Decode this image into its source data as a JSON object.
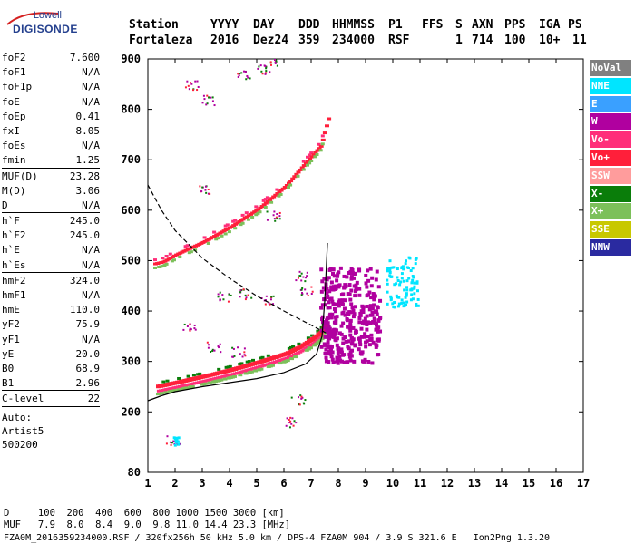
{
  "logo": {
    "top": "Lowell",
    "main": "DIGISONDE"
  },
  "header": {
    "row1": [
      "Station",
      "YYYY",
      "DAY",
      "DDD",
      "HHMMSS",
      "P1",
      "FFS",
      "S",
      "AXN",
      "PPS",
      "IGA",
      "PS"
    ],
    "row2": [
      "Fortaleza",
      "2016",
      "Dez24",
      "359",
      "234000",
      "RSF",
      "1",
      "714",
      "100",
      "10+",
      "11"
    ]
  },
  "params": {
    "group1": [
      {
        "k": "foF2",
        "v": "7.600"
      },
      {
        "k": "foF1",
        "v": "N/A"
      },
      {
        "k": "foF1p",
        "v": "N/A"
      },
      {
        "k": "foE",
        "v": "N/A"
      },
      {
        "k": "foEp",
        "v": "0.41"
      },
      {
        "k": "fxI",
        "v": "8.05"
      },
      {
        "k": "foEs",
        "v": "N/A"
      },
      {
        "k": "fmin",
        "v": "1.25"
      }
    ],
    "group2": [
      {
        "k": "MUF(D)",
        "v": "23.28"
      },
      {
        "k": "M(D)",
        "v": "3.06"
      },
      {
        "k": "D",
        "v": "N/A"
      }
    ],
    "group3": [
      {
        "k": "h`F",
        "v": "245.0"
      },
      {
        "k": "h`F2",
        "v": "245.0"
      },
      {
        "k": "h`E",
        "v": "N/A"
      },
      {
        "k": "h`Es",
        "v": "N/A"
      }
    ],
    "group4": [
      {
        "k": "hmF2",
        "v": "324.0"
      },
      {
        "k": "hmF1",
        "v": "N/A"
      },
      {
        "k": "hmE",
        "v": "110.0"
      },
      {
        "k": "yF2",
        "v": "75.9"
      },
      {
        "k": "yF1",
        "v": "N/A"
      },
      {
        "k": "yE",
        "v": "20.0"
      },
      {
        "k": "B0",
        "v": "68.9"
      },
      {
        "k": "B1",
        "v": "2.96"
      }
    ],
    "group5": [
      {
        "k": "C-level",
        "v": "22"
      }
    ],
    "auto": [
      "Auto:",
      "Artist5",
      "500200"
    ]
  },
  "legend": [
    {
      "label": "NoVal",
      "bg": "#808080",
      "fg": "#ffffff"
    },
    {
      "label": "NNE",
      "bg": "#00e5ff",
      "fg": "#ffffff"
    },
    {
      "label": "E",
      "bg": "#3aa0ff",
      "fg": "#ffffff"
    },
    {
      "label": "W",
      "bg": "#b0009f",
      "fg": "#ffffff"
    },
    {
      "label": "Vo-",
      "bg": "#ff2e7a",
      "fg": "#ffffff"
    },
    {
      "label": "Vo+",
      "bg": "#ff1f3a",
      "fg": "#ffffff"
    },
    {
      "label": "SSW",
      "bg": "#ff9c9c",
      "fg": "#ffffff"
    },
    {
      "label": "X-",
      "bg": "#0a7d0a",
      "fg": "#ffffff"
    },
    {
      "label": "X+",
      "bg": "#7cc05a",
      "fg": "#ffffff"
    },
    {
      "label": "SSE",
      "bg": "#c8c800",
      "fg": "#ffffff"
    },
    {
      "label": "NNW",
      "bg": "#2a2aa0",
      "fg": "#ffffff"
    }
  ],
  "footer": {
    "d_row": "D     100  200  400  600  800 1000 1500 3000 [km]",
    "muf_row": "MUF   7.9  8.0  8.4  9.0  9.8 11.0 14.4 23.3 [MHz]",
    "file_row": "FZA0M_2016359234000.RSF / 320fx256h 50 kHz 5.0 km / DPS-4 FZA0M 904 / 3.9 S 321.6 E   Ion2Png 1.3.20"
  },
  "chart_data": {
    "type": "scatter",
    "xlim": [
      1,
      17
    ],
    "ylim": [
      80,
      900
    ],
    "x_ticks": [
      1,
      2,
      3,
      4,
      5,
      6,
      7,
      8,
      9,
      10,
      11,
      12,
      13,
      14,
      15,
      16,
      17
    ],
    "y_ticks": [
      80,
      200,
      300,
      400,
      500,
      600,
      700,
      800,
      900
    ],
    "grid": false,
    "ordinary_trace": {
      "x": [
        1.3,
        2.0,
        3.0,
        4.0,
        5.0,
        6.0,
        6.5,
        7.0,
        7.3,
        7.5
      ],
      "y": [
        250,
        258,
        270,
        283,
        298,
        315,
        328,
        345,
        358,
        375
      ]
    },
    "f2_second_hop": {
      "x": [
        0.7,
        1.5,
        2.0,
        3.0,
        4.0,
        5.0,
        6.0,
        6.8,
        7.3,
        7.4,
        7.5,
        7.6
      ],
      "y": [
        490,
        500,
        515,
        540,
        570,
        605,
        650,
        700,
        730,
        750,
        770,
        790
      ]
    },
    "profile_curve": {
      "x": [
        1.0,
        1.5,
        2.0,
        3.0,
        4.0,
        5.0,
        6.0,
        6.8,
        7.2,
        7.4,
        7.5,
        7.6
      ],
      "y": [
        222,
        232,
        240,
        250,
        258,
        266,
        278,
        295,
        315,
        350,
        420,
        535
      ]
    },
    "muf_curve": {
      "x": [
        1.0,
        1.5,
        2.0,
        3.0,
        4.0,
        5.0,
        6.0,
        7.0,
        7.6
      ],
      "y": [
        650,
        600,
        560,
        505,
        465,
        430,
        400,
        372,
        355
      ]
    },
    "w_cluster": {
      "x": [
        7.3,
        9.5
      ],
      "y": [
        300,
        490
      ]
    },
    "nne_cluster": {
      "x": [
        9.7,
        10.9
      ],
      "y": [
        410,
        510
      ]
    },
    "sporadic_points": [
      {
        "x": 2.6,
        "y": 850
      },
      {
        "x": 3.2,
        "y": 820
      },
      {
        "x": 4.5,
        "y": 870
      },
      {
        "x": 5.2,
        "y": 880
      },
      {
        "x": 5.5,
        "y": 895
      },
      {
        "x": 3.8,
        "y": 430
      },
      {
        "x": 4.6,
        "y": 435
      },
      {
        "x": 5.4,
        "y": 425
      },
      {
        "x": 2.5,
        "y": 370
      },
      {
        "x": 3.4,
        "y": 330
      },
      {
        "x": 4.3,
        "y": 320
      },
      {
        "x": 6.5,
        "y": 225
      },
      {
        "x": 6.2,
        "y": 180
      },
      {
        "x": 1.9,
        "y": 145
      },
      {
        "x": 3.1,
        "y": 640
      },
      {
        "x": 5.6,
        "y": 590
      },
      {
        "x": 6.6,
        "y": 470
      },
      {
        "x": 6.8,
        "y": 440
      }
    ]
  }
}
